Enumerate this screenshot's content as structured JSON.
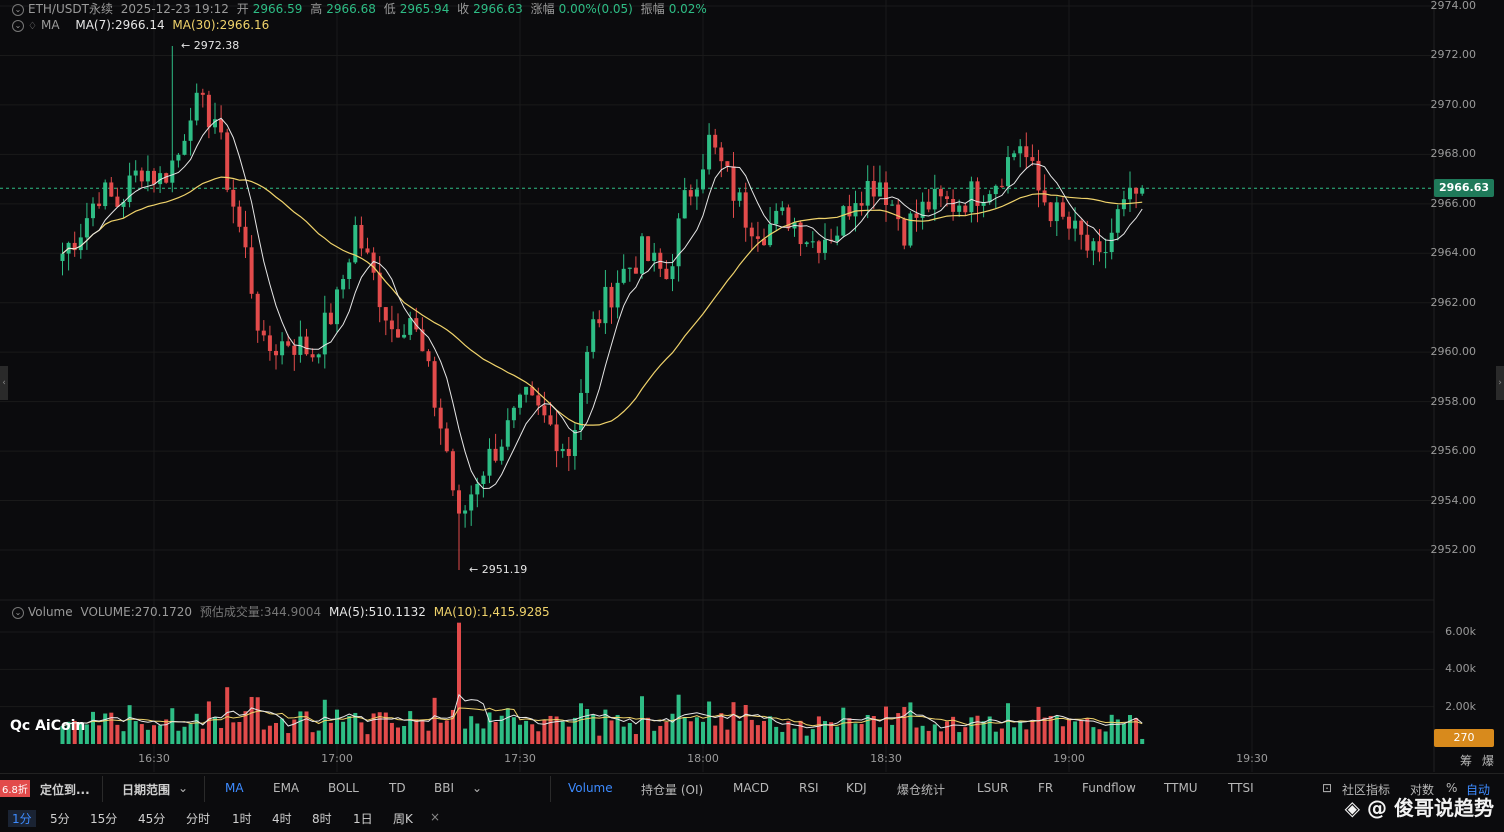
{
  "header": {
    "symbol": "ETH/USDT永续",
    "datetime": "2025-12-23 19:12",
    "open_label": "开",
    "open": "2966.59",
    "high_label": "高",
    "high": "2966.68",
    "low_label": "低",
    "low": "2965.94",
    "close_label": "收",
    "close": "2966.63",
    "change_label": "涨幅",
    "change": "0.00%(0.05)",
    "amp_label": "振幅",
    "amp": "0.02%"
  },
  "ma_header": {
    "name": "MA",
    "ma7": "MA(7):2966.14",
    "ma30": "MA(30):2966.16"
  },
  "volume_header": {
    "name": "Volume",
    "volume": "VOLUME:270.1720",
    "est_label": "预估成交量:",
    "est": "344.9004",
    "ma5": "MA(5):510.1132",
    "ma10": "MA(10):1,415.9285"
  },
  "price_axis": [
    "2974.00",
    "2972.00",
    "2970.00",
    "2968.00",
    "2966.00",
    "2964.00",
    "2962.00",
    "2960.00",
    "2958.00",
    "2956.00",
    "2954.00",
    "2952.00"
  ],
  "volume_axis": [
    "6.00k",
    "4.00k",
    "2.00k"
  ],
  "time_axis": [
    "16:30",
    "17:00",
    "17:30",
    "18:00",
    "18:30",
    "19:00",
    "19:30"
  ],
  "current_price_tag": "2966.63",
  "current_volume_tag": "270",
  "annotations": {
    "high": "2972.38",
    "low": "2951.19"
  },
  "logo": "AiCoin",
  "toolbar": {
    "discount": "6.8折",
    "locate": "定位到...",
    "date_range": "日期范围",
    "indicators": [
      "MA",
      "EMA",
      "BOLL",
      "TD",
      "BBI"
    ],
    "sub_indicators": [
      "Volume",
      "持仓量 (OI)",
      "MACD",
      "RSI",
      "KDJ",
      "爆仓统计",
      "LSUR",
      "FR",
      "Fundflow",
      "TTMU",
      "TTSI"
    ],
    "community": "社区指标",
    "log": "对数",
    "pct": "%",
    "auto": "自动",
    "side_a": "筹",
    "side_b": "爆"
  },
  "intervals": [
    "1分",
    "5分",
    "15分",
    "45分",
    "分时",
    "1时",
    "4时",
    "8时",
    "1日",
    "周K"
  ],
  "watermark": "@ 俊哥说趋势",
  "colors": {
    "up": "#2ebd85",
    "down": "#e24b4b",
    "ma7": "#e6e6e6",
    "ma30": "#f0d36b",
    "accent": "#3d8bff"
  },
  "chart_data": {
    "type": "candlestick",
    "timeframe": "1m",
    "time_range": [
      "16:15",
      "19:12"
    ],
    "price_ylim": [
      2950.5,
      2974.5
    ],
    "volume_ylim": [
      0,
      6500
    ],
    "series": [
      {
        "name": "MA(7)",
        "type": "line"
      },
      {
        "name": "MA(30)",
        "type": "line"
      }
    ],
    "close_path": [
      {
        "t": "16:15",
        "p": 2964.0
      },
      {
        "t": "16:18",
        "p": 2965.0
      },
      {
        "t": "16:21",
        "p": 2966.5
      },
      {
        "t": "16:24",
        "p": 2966.0
      },
      {
        "t": "16:28",
        "p": 2967.5
      },
      {
        "t": "16:31",
        "p": 2967.0
      },
      {
        "t": "16:34",
        "p": 2968.0
      },
      {
        "t": "16:36",
        "p": 2970.0
      },
      {
        "t": "16:40",
        "p": 2969.5
      },
      {
        "t": "16:42",
        "p": 2967.0
      },
      {
        "t": "16:45",
        "p": 2964.0
      },
      {
        "t": "16:48",
        "p": 2960.0
      },
      {
        "t": "16:52",
        "p": 2960.5
      },
      {
        "t": "16:56",
        "p": 2960.0
      },
      {
        "t": "17:00",
        "p": 2962.0
      },
      {
        "t": "17:03",
        "p": 2965.0
      },
      {
        "t": "17:06",
        "p": 2963.0
      },
      {
        "t": "17:09",
        "p": 2961.0
      },
      {
        "t": "17:12",
        "p": 2961.5
      },
      {
        "t": "17:15",
        "p": 2959.0
      },
      {
        "t": "17:18",
        "p": 2956.0
      },
      {
        "t": "17:20",
        "p": 2953.0
      },
      {
        "t": "17:23",
        "p": 2955.0
      },
      {
        "t": "17:27",
        "p": 2956.5
      },
      {
        "t": "17:31",
        "p": 2958.0
      },
      {
        "t": "17:35",
        "p": 2957.0
      },
      {
        "t": "17:38",
        "p": 2956.0
      },
      {
        "t": "17:42",
        "p": 2961.0
      },
      {
        "t": "17:46",
        "p": 2963.0
      },
      {
        "t": "17:50",
        "p": 2964.0
      },
      {
        "t": "17:54",
        "p": 2963.0
      },
      {
        "t": "17:57",
        "p": 2966.0
      },
      {
        "t": "18:01",
        "p": 2968.5
      },
      {
        "t": "18:04",
        "p": 2967.0
      },
      {
        "t": "18:07",
        "p": 2965.5
      },
      {
        "t": "18:10",
        "p": 2965.0
      },
      {
        "t": "18:14",
        "p": 2965.5
      },
      {
        "t": "18:18",
        "p": 2964.5
      },
      {
        "t": "18:22",
        "p": 2965.0
      },
      {
        "t": "18:25",
        "p": 2966.5
      },
      {
        "t": "18:29",
        "p": 2967.0
      },
      {
        "t": "18:33",
        "p": 2965.0
      },
      {
        "t": "18:37",
        "p": 2966.0
      },
      {
        "t": "18:41",
        "p": 2966.0
      },
      {
        "t": "18:45",
        "p": 2966.5
      },
      {
        "t": "18:48",
        "p": 2967.0
      },
      {
        "t": "18:52",
        "p": 2968.5
      },
      {
        "t": "18:55",
        "p": 2966.5
      },
      {
        "t": "18:58",
        "p": 2965.5
      },
      {
        "t": "19:02",
        "p": 2964.5
      },
      {
        "t": "19:05",
        "p": 2963.5
      },
      {
        "t": "19:08",
        "p": 2965.5
      },
      {
        "t": "19:12",
        "p": 2966.63
      }
    ],
    "high": {
      "t": "16:33",
      "price": 2972.38
    },
    "low": {
      "t": "17:20",
      "price": 2951.19
    },
    "current_price": 2966.63,
    "current_volume": 270.172,
    "ma7": 2966.14,
    "ma30": 2966.16,
    "volume_ma5": 510.1132,
    "volume_ma10": 1415.9285
  }
}
